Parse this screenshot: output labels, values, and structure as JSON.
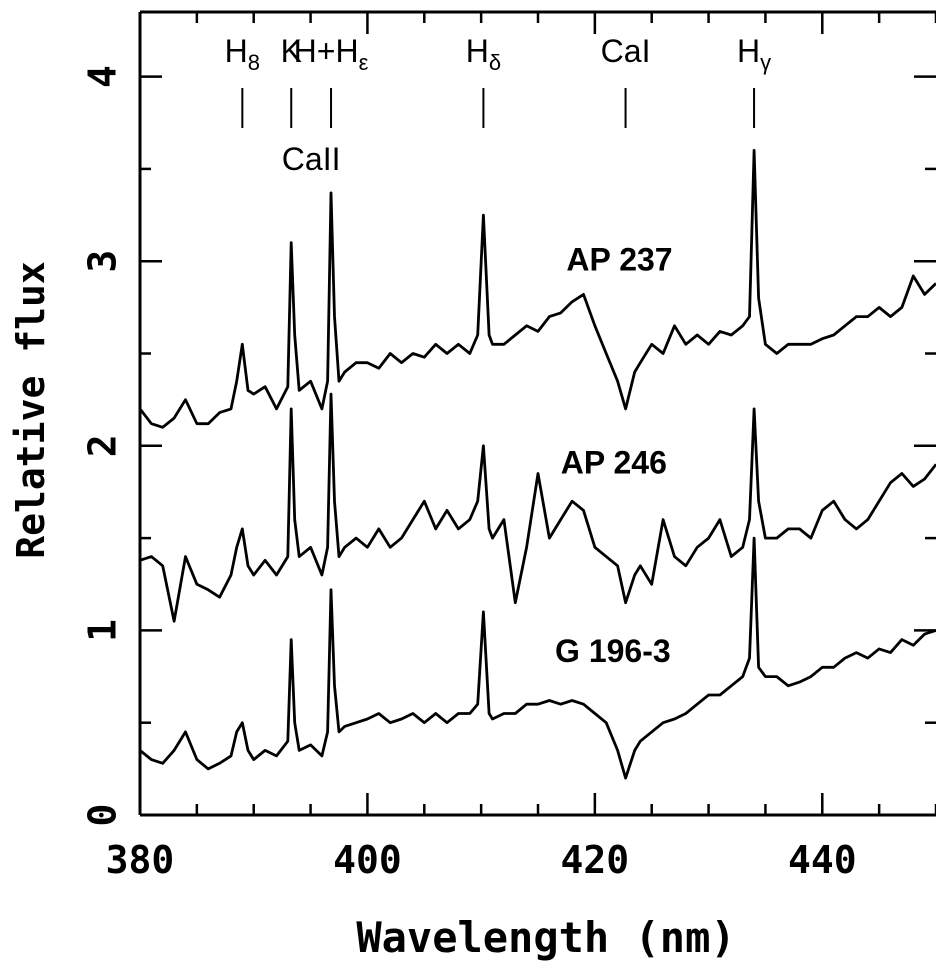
{
  "chart_data": {
    "type": "line",
    "xlabel": "Wavelength (nm)",
    "ylabel": "Relative flux",
    "xlim": [
      380,
      450
    ],
    "ylim": [
      0,
      4.35
    ],
    "x_ticks": [
      380,
      400,
      420,
      440
    ],
    "y_ticks": [
      0,
      1,
      2,
      3,
      4
    ],
    "grid": false,
    "line_markers": [
      {
        "main": "H",
        "sub": "8",
        "x": 389.0
      },
      {
        "main": "K",
        "sub": "",
        "x": 393.3
      },
      {
        "main": "H+H",
        "sub": "ε",
        "x": 396.8
      },
      {
        "main": "H",
        "sub": "δ",
        "x": 410.2
      },
      {
        "main": "CaI",
        "sub": "",
        "x": 422.7
      },
      {
        "main": "H",
        "sub": "γ",
        "x": 434.0
      }
    ],
    "group_label": "CaII",
    "series": [
      {
        "name": "AP 237",
        "x": [
          380,
          381,
          382,
          383,
          384,
          385,
          386,
          387,
          388,
          388.5,
          389,
          389.5,
          390,
          391,
          392,
          393,
          393.3,
          393.6,
          394,
          395,
          396,
          396.5,
          396.8,
          397.1,
          397.5,
          398,
          399,
          400,
          401,
          402,
          403,
          404,
          405,
          406,
          407,
          408,
          409,
          409.7,
          410.2,
          410.7,
          411,
          412,
          413,
          414,
          415,
          416,
          417,
          418,
          419,
          420,
          421,
          422,
          422.7,
          423.5,
          424,
          425,
          426,
          427,
          428,
          429,
          430,
          431,
          432,
          433,
          433.6,
          434,
          434.4,
          435,
          436,
          437,
          438,
          439,
          440,
          441,
          442,
          443,
          444,
          445,
          446,
          447,
          448,
          449,
          450
        ],
        "y": [
          2.2,
          2.12,
          2.1,
          2.15,
          2.25,
          2.12,
          2.12,
          2.18,
          2.2,
          2.35,
          2.55,
          2.3,
          2.28,
          2.32,
          2.2,
          2.32,
          3.1,
          2.6,
          2.3,
          2.35,
          2.2,
          2.35,
          3.37,
          2.7,
          2.35,
          2.4,
          2.45,
          2.45,
          2.42,
          2.5,
          2.45,
          2.5,
          2.48,
          2.55,
          2.5,
          2.55,
          2.5,
          2.6,
          3.25,
          2.6,
          2.55,
          2.55,
          2.6,
          2.65,
          2.62,
          2.7,
          2.72,
          2.78,
          2.82,
          2.65,
          2.5,
          2.35,
          2.2,
          2.4,
          2.45,
          2.55,
          2.5,
          2.65,
          2.55,
          2.6,
          2.55,
          2.62,
          2.6,
          2.65,
          2.7,
          3.6,
          2.8,
          2.55,
          2.5,
          2.55,
          2.55,
          2.55,
          2.58,
          2.6,
          2.65,
          2.7,
          2.7,
          2.75,
          2.7,
          2.75,
          2.92,
          2.82,
          2.88
        ]
      },
      {
        "name": "AP 246",
        "x": [
          380,
          381,
          382,
          383,
          384,
          385,
          386,
          387,
          388,
          388.5,
          389,
          389.5,
          390,
          391,
          392,
          393,
          393.3,
          393.6,
          394,
          395,
          396,
          396.5,
          396.8,
          397.1,
          397.5,
          398,
          399,
          400,
          401,
          402,
          403,
          404,
          405,
          406,
          407,
          408,
          409,
          409.7,
          410.2,
          410.7,
          411,
          412,
          413,
          414,
          415,
          416,
          417,
          418,
          419,
          420,
          421,
          422,
          422.7,
          423.5,
          424,
          425,
          426,
          427,
          428,
          429,
          430,
          431,
          432,
          433,
          433.6,
          434,
          434.4,
          435,
          436,
          437,
          438,
          439,
          440,
          441,
          442,
          443,
          444,
          445,
          446,
          447,
          448,
          449,
          450
        ],
        "y": [
          1.38,
          1.4,
          1.35,
          1.05,
          1.4,
          1.25,
          1.22,
          1.18,
          1.3,
          1.45,
          1.55,
          1.35,
          1.3,
          1.38,
          1.3,
          1.4,
          2.2,
          1.6,
          1.4,
          1.45,
          1.3,
          1.45,
          2.28,
          1.7,
          1.4,
          1.45,
          1.5,
          1.45,
          1.55,
          1.45,
          1.5,
          1.6,
          1.7,
          1.55,
          1.65,
          1.55,
          1.6,
          1.7,
          2.0,
          1.55,
          1.5,
          1.6,
          1.15,
          1.45,
          1.85,
          1.5,
          1.6,
          1.7,
          1.65,
          1.45,
          1.4,
          1.35,
          1.15,
          1.3,
          1.35,
          1.25,
          1.6,
          1.4,
          1.35,
          1.45,
          1.5,
          1.6,
          1.4,
          1.45,
          1.6,
          2.2,
          1.7,
          1.5,
          1.5,
          1.55,
          1.55,
          1.5,
          1.65,
          1.7,
          1.6,
          1.55,
          1.6,
          1.7,
          1.8,
          1.85,
          1.78,
          1.82,
          1.9
        ]
      },
      {
        "name": "G 196-3",
        "x": [
          380,
          381,
          382,
          383,
          384,
          385,
          386,
          387,
          388,
          388.5,
          389,
          389.5,
          390,
          391,
          392,
          393,
          393.3,
          393.6,
          394,
          395,
          396,
          396.5,
          396.8,
          397.1,
          397.5,
          398,
          399,
          400,
          401,
          402,
          403,
          404,
          405,
          406,
          407,
          408,
          409,
          409.7,
          410.2,
          410.7,
          411,
          412,
          413,
          414,
          415,
          416,
          417,
          418,
          419,
          420,
          421,
          422,
          422.7,
          423.5,
          424,
          425,
          426,
          427,
          428,
          429,
          430,
          431,
          432,
          433,
          433.6,
          434,
          434.4,
          435,
          436,
          437,
          438,
          439,
          440,
          441,
          442,
          443,
          444,
          445,
          446,
          447,
          448,
          449,
          450
        ],
        "y": [
          0.35,
          0.3,
          0.28,
          0.35,
          0.45,
          0.3,
          0.25,
          0.28,
          0.32,
          0.45,
          0.5,
          0.35,
          0.3,
          0.35,
          0.32,
          0.4,
          0.95,
          0.5,
          0.35,
          0.38,
          0.32,
          0.45,
          1.22,
          0.7,
          0.45,
          0.48,
          0.5,
          0.52,
          0.55,
          0.5,
          0.52,
          0.55,
          0.5,
          0.55,
          0.5,
          0.55,
          0.55,
          0.6,
          1.1,
          0.55,
          0.52,
          0.55,
          0.55,
          0.6,
          0.6,
          0.62,
          0.6,
          0.62,
          0.6,
          0.55,
          0.5,
          0.35,
          0.2,
          0.35,
          0.4,
          0.45,
          0.5,
          0.52,
          0.55,
          0.6,
          0.65,
          0.65,
          0.7,
          0.75,
          0.85,
          1.5,
          0.8,
          0.75,
          0.75,
          0.7,
          0.72,
          0.75,
          0.8,
          0.8,
          0.85,
          0.88,
          0.85,
          0.9,
          0.88,
          0.95,
          0.92,
          0.98,
          1.0
        ]
      }
    ],
    "series_label_positions": [
      {
        "name": "AP 237",
        "x": 417.5,
        "y": 2.95
      },
      {
        "name": "AP 246",
        "x": 417.0,
        "y": 1.85
      },
      {
        "name": "G 196-3",
        "x": 416.5,
        "y": 0.83
      }
    ]
  }
}
